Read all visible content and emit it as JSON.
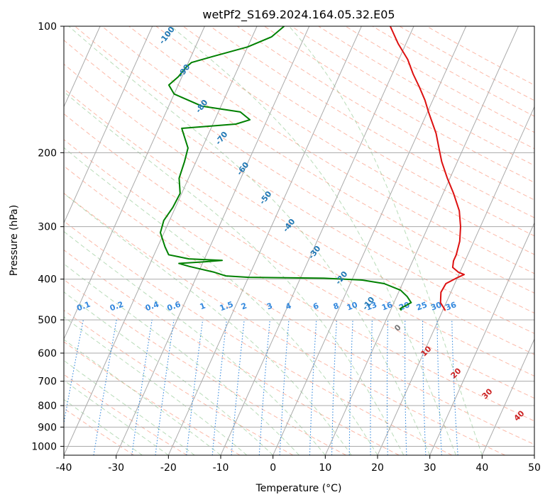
{
  "chart_data": {
    "type": "line",
    "title": "wetPf2_S169.2024.164.05.32.E05",
    "xlabel": "Temperature (°C)",
    "ylabel": "Pressure (hPa)",
    "xlim": [
      -40,
      50
    ],
    "ylim": [
      1050,
      100
    ],
    "y_scale": "log",
    "x_ticks": [
      "-40",
      "-30",
      "-20",
      "-10",
      "0",
      "10",
      "20",
      "30",
      "40",
      "50"
    ],
    "y_ticks": [
      "100",
      "200",
      "300",
      "400",
      "500",
      "600",
      "700",
      "800",
      "900",
      "1000"
    ],
    "grid": true,
    "series": [
      {
        "role": "temperature",
        "color": "#dd1111",
        "points": [
          [
            475,
            20.5
          ],
          [
            455,
            18.9
          ],
          [
            430,
            18.1
          ],
          [
            410,
            18.3
          ],
          [
            398,
            19.8
          ],
          [
            390,
            21.0
          ],
          [
            385,
            19.7
          ],
          [
            375,
            18.2
          ],
          [
            362,
            17.8
          ],
          [
            350,
            17.8
          ],
          [
            325,
            17.3
          ],
          [
            300,
            16.2
          ],
          [
            275,
            14.6
          ],
          [
            250,
            12.0
          ],
          [
            230,
            9.5
          ],
          [
            210,
            7.0
          ],
          [
            195,
            5.3
          ],
          [
            180,
            3.5
          ],
          [
            170,
            1.9
          ],
          [
            160,
            0.2
          ],
          [
            150,
            -1.5
          ],
          [
            140,
            -3.6
          ],
          [
            130,
            -6.0
          ],
          [
            120,
            -8.3
          ],
          [
            110,
            -11.5
          ],
          [
            100,
            -14.5
          ]
        ]
      },
      {
        "role": "dewpoint",
        "color": "#008000",
        "points": [
          [
            475,
            12.1
          ],
          [
            470,
            11.7
          ],
          [
            455,
            13.3
          ],
          [
            440,
            12.0
          ],
          [
            425,
            10.2
          ],
          [
            410,
            6.5
          ],
          [
            402,
            2.0
          ],
          [
            398,
            -5.5
          ],
          [
            396,
            -20.0
          ],
          [
            393,
            -24.5
          ],
          [
            385,
            -27.0
          ],
          [
            373,
            -32.3
          ],
          [
            367,
            -34.5
          ],
          [
            364,
            -30.0
          ],
          [
            361,
            -26.5
          ],
          [
            358,
            -33.0
          ],
          [
            350,
            -37.2
          ],
          [
            335,
            -38.6
          ],
          [
            310,
            -40.7
          ],
          [
            290,
            -41.1
          ],
          [
            270,
            -40.5
          ],
          [
            250,
            -40.3
          ],
          [
            230,
            -41.8
          ],
          [
            210,
            -42.2
          ],
          [
            195,
            -42.7
          ],
          [
            175,
            -45.6
          ],
          [
            171,
            -35.6
          ],
          [
            167,
            -33.3
          ],
          [
            160,
            -35.8
          ],
          [
            155,
            -43.6
          ],
          [
            145,
            -50.0
          ],
          [
            138,
            -51.8
          ],
          [
            132,
            -50.7
          ],
          [
            125,
            -50.0
          ],
          [
            122,
            -49.4
          ],
          [
            118,
            -45.8
          ],
          [
            112,
            -40.0
          ],
          [
            106,
            -36.3
          ],
          [
            100,
            -34.8
          ]
        ]
      }
    ],
    "background_lines": {
      "isotherm_color": "#aaaaaa",
      "dry_adiabat_color": "#fa8060",
      "moist_adiabat_color": "#7fbf7f",
      "mixing_ratio_color": "#3388dd",
      "mixing_ratio_labels": [
        "0.1",
        "0.2",
        "0.4",
        "0.6",
        "1",
        "1.5",
        "2",
        "3",
        "4",
        "6",
        "8",
        "10",
        "13",
        "16",
        "20",
        "25",
        "30",
        "36"
      ],
      "mixing_ratio_values": [
        0.1,
        0.2,
        0.4,
        0.6,
        1,
        1.5,
        2,
        3,
        4,
        6,
        8,
        10,
        13,
        16,
        20,
        25,
        30,
        36
      ],
      "height_label_color": "#1f77b4",
      "height_labels": [
        "-100",
        "-90",
        "-80",
        "-70",
        "-60",
        "-50",
        "-40",
        "-30",
        "-20",
        "-10"
      ],
      "lcl_label_color": "#cc2222",
      "lcl_labels": [
        "0",
        "10",
        "20",
        "30",
        "40"
      ]
    }
  }
}
